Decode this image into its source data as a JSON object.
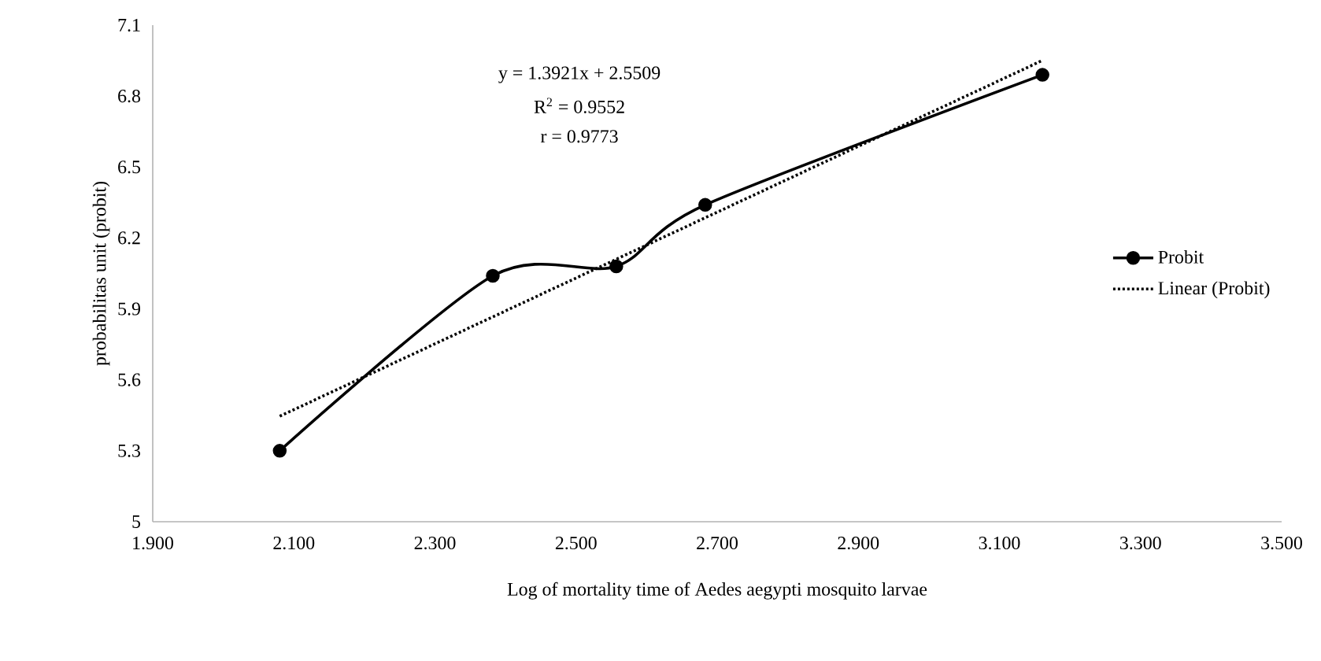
{
  "chart_data": {
    "type": "line",
    "xlabel": "Log of mortality time of Aedes aegypti mosquito larvae",
    "ylabel": "probabilitas unit (probit)",
    "xlim": [
      1.9,
      3.5
    ],
    "xticks": [
      {
        "value": 1.9,
        "label": "1.900"
      },
      {
        "value": 2.1,
        "label": "2.100"
      },
      {
        "value": 2.3,
        "label": "2.300"
      },
      {
        "value": 2.5,
        "label": "2.500"
      },
      {
        "value": 2.7,
        "label": "2.700"
      },
      {
        "value": 2.9,
        "label": "2.900"
      },
      {
        "value": 3.1,
        "label": "3.100"
      },
      {
        "value": 3.3,
        "label": "3.300"
      },
      {
        "value": 3.5,
        "label": "3.500"
      }
    ],
    "ylim": [
      5,
      7.1
    ],
    "yticks": [
      5,
      5.3,
      5.6,
      5.9,
      6.2,
      6.5,
      6.8,
      7.1
    ],
    "series": [
      {
        "name": "Probit",
        "color": "#000000",
        "marker": "circle",
        "line_style": "solid",
        "x": [
          2.08,
          2.382,
          2.557,
          2.683,
          3.161
        ],
        "values": [
          5.3,
          6.04,
          6.08,
          6.34,
          6.89
        ]
      },
      {
        "name": "Linear (Probit)",
        "color": "#000000",
        "marker": "none",
        "line_style": "dotted",
        "x": [
          2.08,
          3.161
        ],
        "values": [
          5.446,
          6.951
        ]
      }
    ],
    "annotations": [
      "y = 1.3921x + 2.5509",
      "R$^{2}$ = 0.9552",
      "r = 0.9773"
    ],
    "legend": "right",
    "grid": false
  }
}
